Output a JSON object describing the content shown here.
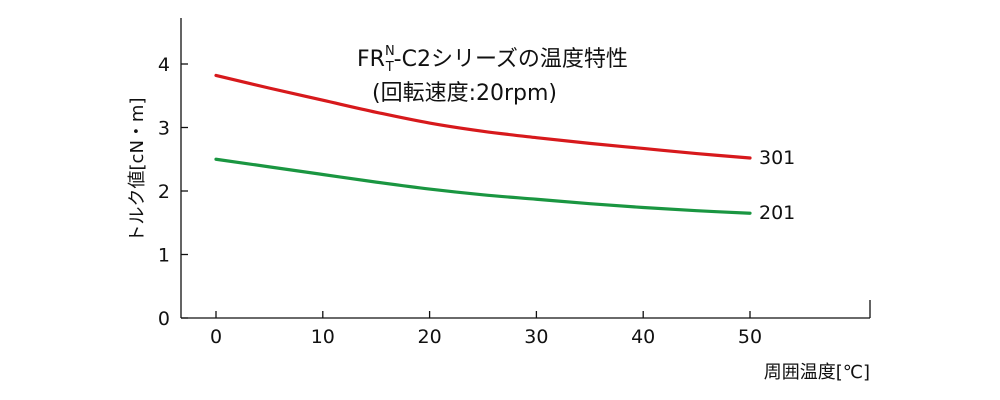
{
  "chart_data": {
    "type": "line",
    "title_main": "FR",
    "title_super": "N",
    "title_sub": "T",
    "title_rest": "-C2シリーズの温度特性",
    "subtitle": "(回転速度:20rpm)",
    "xlabel": "周囲温度[℃]",
    "ylabel": "トルク値[cN・m]",
    "xlim": [
      -3,
      60
    ],
    "ylim": [
      0,
      4.7
    ],
    "xticks": [
      0,
      10,
      20,
      30,
      40,
      50
    ],
    "yticks": [
      0,
      1,
      2,
      3,
      4
    ],
    "grid": false,
    "series": [
      {
        "name": "301",
        "color": "#d7191c",
        "x": [
          0,
          5,
          10,
          15,
          20,
          25,
          30,
          35,
          40,
          45,
          50
        ],
        "y": [
          3.82,
          3.62,
          3.43,
          3.24,
          3.07,
          2.94,
          2.84,
          2.75,
          2.67,
          2.59,
          2.52
        ]
      },
      {
        "name": "201",
        "color": "#1a9641",
        "x": [
          0,
          5,
          10,
          15,
          20,
          25,
          30,
          35,
          40,
          45,
          50
        ],
        "y": [
          2.5,
          2.38,
          2.26,
          2.14,
          2.03,
          1.94,
          1.87,
          1.8,
          1.74,
          1.69,
          1.65
        ]
      }
    ]
  }
}
